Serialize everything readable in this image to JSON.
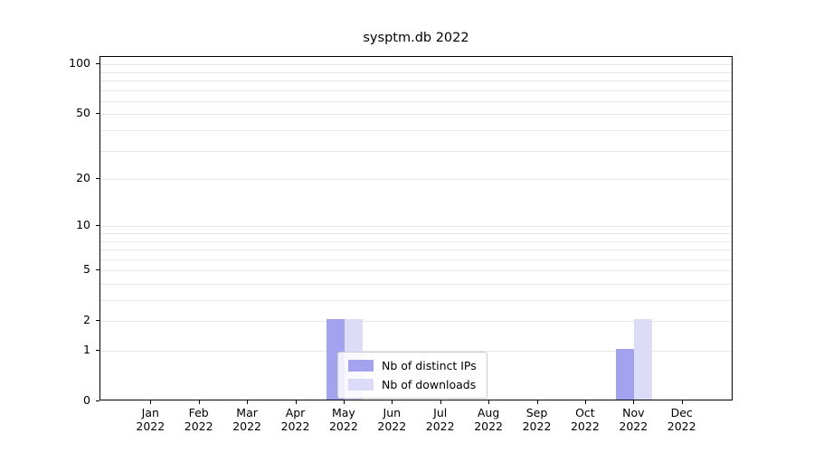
{
  "title": "sysptm.db 2022",
  "chart_data": {
    "type": "bar",
    "title": "sysptm.db 2022",
    "xlabel": "",
    "ylabel": "",
    "yscale": "log(1+x)",
    "ylim": [
      0,
      110
    ],
    "grid": true,
    "legend_position": "lower-center inside plot",
    "categories": [
      {
        "month": "Jan",
        "year": "2022"
      },
      {
        "month": "Feb",
        "year": "2022"
      },
      {
        "month": "Mar",
        "year": "2022"
      },
      {
        "month": "Apr",
        "year": "2022"
      },
      {
        "month": "May",
        "year": "2022"
      },
      {
        "month": "Jun",
        "year": "2022"
      },
      {
        "month": "Jul",
        "year": "2022"
      },
      {
        "month": "Aug",
        "year": "2022"
      },
      {
        "month": "Sep",
        "year": "2022"
      },
      {
        "month": "Oct",
        "year": "2022"
      },
      {
        "month": "Nov",
        "year": "2022"
      },
      {
        "month": "Dec",
        "year": "2022"
      }
    ],
    "series": [
      {
        "key": "distinct-ips",
        "name": "Nb of distinct IPs",
        "color": "#a2a2ef",
        "values": [
          0,
          0,
          0,
          0,
          2,
          0,
          0,
          0,
          0,
          0,
          1,
          0
        ]
      },
      {
        "key": "downloads",
        "name": "Nb of downloads",
        "color": "#dcdcf9",
        "values": [
          0,
          0,
          0,
          0,
          2,
          0,
          0,
          0,
          0,
          0,
          2,
          0
        ]
      }
    ],
    "y_ticks": [
      0,
      1,
      2,
      5,
      10,
      20,
      50,
      100
    ],
    "y_gridlines": [
      1,
      2,
      3,
      4,
      5,
      6,
      7,
      8,
      9,
      10,
      20,
      30,
      40,
      50,
      60,
      70,
      80,
      90,
      100
    ]
  }
}
